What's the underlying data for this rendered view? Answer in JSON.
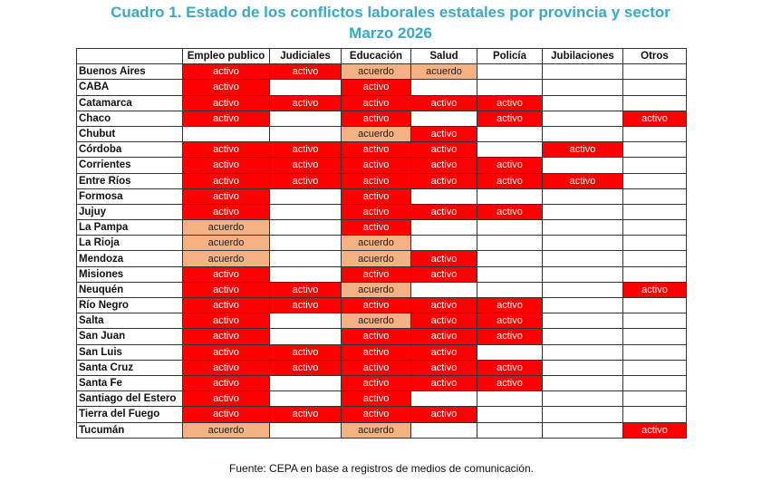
{
  "title": "Cuadro 1. Estado de los conflictos laborales estatales por provincia y sector",
  "subtitle": "Marzo 2026",
  "columns": [
    "",
    "Empleo publico",
    "Judiciales",
    "Educación",
    "Salud",
    "Policía",
    "Jubilaciones",
    "Otros"
  ],
  "rows": [
    {
      "province": "Buenos Aires",
      "values": [
        "activo",
        "activo",
        "acuerdo",
        "acuerdo",
        "",
        "",
        ""
      ]
    },
    {
      "province": "CABA",
      "values": [
        "activo",
        "",
        "activo",
        "",
        "",
        "",
        ""
      ]
    },
    {
      "province": "Catamarca",
      "values": [
        "activo",
        "activo",
        "activo",
        "activo",
        "activo",
        "",
        ""
      ]
    },
    {
      "province": "Chaco",
      "values": [
        "activo",
        "",
        "activo",
        "",
        "activo",
        "",
        "activo"
      ]
    },
    {
      "province": "Chubut",
      "values": [
        "",
        "",
        "acuerdo",
        "activo",
        "",
        "",
        ""
      ]
    },
    {
      "province": "Córdoba",
      "values": [
        "activo",
        "activo",
        "activo",
        "activo",
        "",
        "activo",
        ""
      ]
    },
    {
      "province": "Corrientes",
      "values": [
        "activo",
        "activo",
        "activo",
        "activo",
        "activo",
        "",
        ""
      ]
    },
    {
      "province": "Entre Ríos",
      "values": [
        "activo",
        "activo",
        "activo",
        "activo",
        "activo",
        "activo",
        ""
      ]
    },
    {
      "province": "Formosa",
      "values": [
        "activo",
        "",
        "activo",
        "",
        "",
        "",
        ""
      ]
    },
    {
      "province": "Jujuy",
      "values": [
        "activo",
        "",
        "activo",
        "activo",
        "activo",
        "",
        ""
      ]
    },
    {
      "province": "La Pampa",
      "values": [
        "acuerdo",
        "",
        "activo",
        "",
        "",
        "",
        ""
      ]
    },
    {
      "province": "La Rioja",
      "values": [
        "acuerdo",
        "",
        "acuerdo",
        "",
        "",
        "",
        ""
      ]
    },
    {
      "province": "Mendoza",
      "values": [
        "acuerdo",
        "",
        "acuerdo",
        "activo",
        "",
        "",
        ""
      ]
    },
    {
      "province": "Misiones",
      "values": [
        "activo",
        "",
        "activo",
        "activo",
        "",
        "",
        ""
      ]
    },
    {
      "province": "Neuquén",
      "values": [
        "activo",
        "activo",
        "acuerdo",
        "",
        "",
        "",
        "activo"
      ]
    },
    {
      "province": "Río Negro",
      "values": [
        "activo",
        "activo",
        "activo",
        "activo",
        "activo",
        "",
        ""
      ]
    },
    {
      "province": "Salta",
      "values": [
        "activo",
        "",
        "acuerdo",
        "activo",
        "activo",
        "",
        ""
      ]
    },
    {
      "province": "San Juan",
      "values": [
        "activo",
        "",
        "activo",
        "activo",
        "activo",
        "",
        ""
      ]
    },
    {
      "province": "San Luis",
      "values": [
        "activo",
        "activo",
        "activo",
        "activo",
        "",
        "",
        ""
      ]
    },
    {
      "province": "Santa Cruz",
      "values": [
        "activo",
        "activo",
        "activo",
        "activo",
        "activo",
        "",
        ""
      ]
    },
    {
      "province": "Santa Fe",
      "values": [
        "activo",
        "",
        "activo",
        "activo",
        "activo",
        "",
        ""
      ]
    },
    {
      "province": "Santiago del Estero",
      "values": [
        "activo",
        "",
        "activo",
        "",
        "",
        "",
        ""
      ]
    },
    {
      "province": "Tierra del Fuego",
      "values": [
        "activo",
        "activo",
        "activo",
        "activo",
        "",
        "",
        ""
      ]
    },
    {
      "province": "Tucumán",
      "values": [
        "acuerdo",
        "",
        "acuerdo",
        "",
        "",
        "",
        "activo"
      ]
    }
  ],
  "colors": {
    "activo": "#ff0000",
    "acuerdo": "#f4b183",
    "title": "#3aa8c7"
  },
  "footer": "Fuente: CEPA en base a registros de medios de comunicación."
}
